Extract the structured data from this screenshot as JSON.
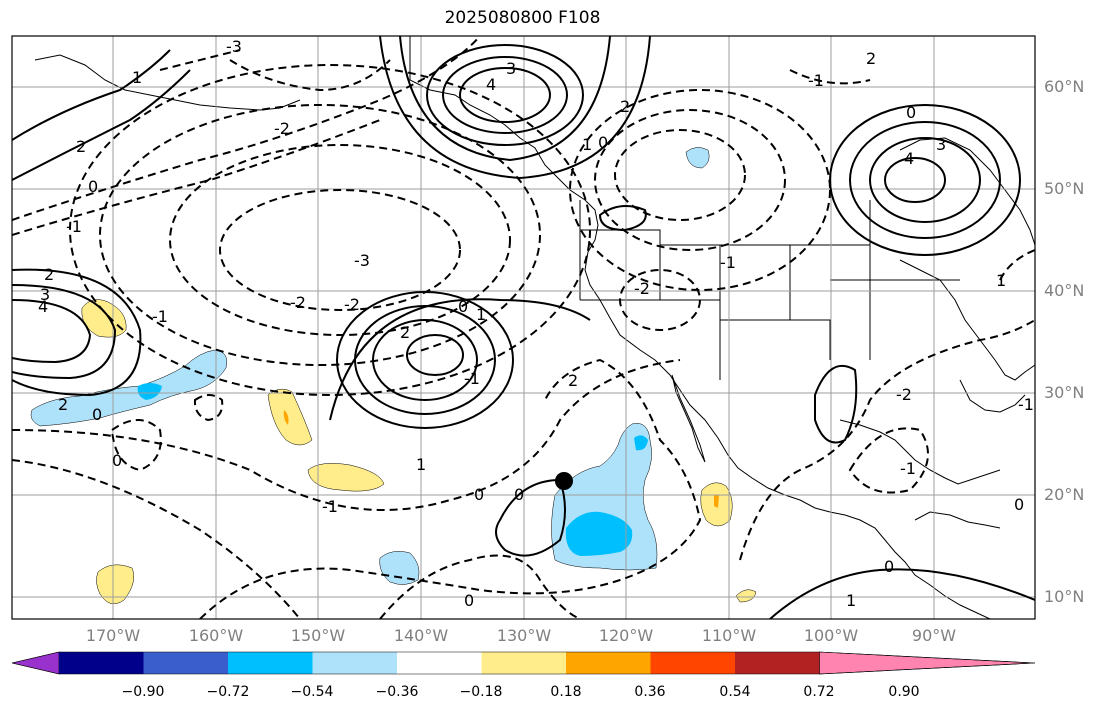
{
  "title": "2025080800 F108",
  "lat_labels": [
    "60°N",
    "50°N",
    "40°N",
    "30°N",
    "20°N",
    "10°N"
  ],
  "lon_labels": [
    "170°W",
    "160°W",
    "150°W",
    "140°W",
    "130°W",
    "120°W",
    "110°W",
    "100°W",
    "90°W"
  ],
  "colorbar": {
    "ticks": [
      "−0.90",
      "−0.72",
      "−0.54",
      "−0.36",
      "−0.18",
      "0.18",
      "0.36",
      "0.54",
      "0.72",
      "0.90"
    ],
    "colors": [
      "#9932cc",
      "#00008b",
      "#3a5fcd",
      "#00bfff",
      "#aee2fb",
      "#ffffff",
      "#ffec8b",
      "#ffa500",
      "#ff4500",
      "#b22222",
      "#ff85b0"
    ]
  },
  "colors": {
    "grid": "#9e9e9e",
    "fill_neg_light": "#aee2fb",
    "fill_neg_mid": "#00bfff",
    "fill_pos_light": "#ffec8b",
    "fill_pos_mid": "#ffa500",
    "label": "#808080"
  },
  "contour_labels": [
    "3",
    "4",
    "2",
    "1",
    "0",
    "-1",
    "-2",
    "-3",
    "4",
    "3",
    "2",
    "1",
    "0",
    "2",
    "-2",
    "-3",
    "-2",
    "-1",
    "0",
    "1",
    "-1",
    "2",
    "0",
    "-2",
    "4",
    "3",
    "2",
    "0",
    "-1",
    "0",
    "0",
    "1",
    "-2",
    "-1",
    "-1",
    "0",
    "0",
    "1",
    "-1",
    "0",
    "2",
    "1",
    "0",
    "-1",
    "2"
  ]
}
